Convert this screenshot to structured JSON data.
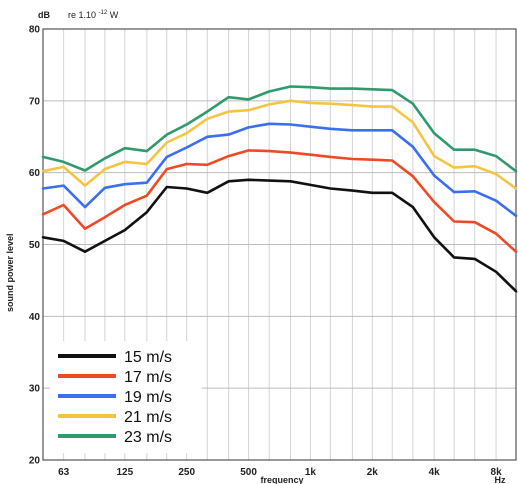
{
  "chart_data": {
    "type": "line",
    "ylabel": "sound power level",
    "xlabel": "frequency",
    "unit_db": "dB",
    "unit_ref": "re 1.10",
    "unit_ref_exp": "-12",
    "unit_ref_w": "W",
    "x_unit": "Hz",
    "ylim": [
      20,
      80
    ],
    "yticks": [
      20,
      30,
      40,
      50,
      60,
      70,
      80
    ],
    "xlim": [
      50,
      10000
    ],
    "xscale": "log",
    "xticks": [
      {
        "value": 63,
        "label": "63"
      },
      {
        "value": 125,
        "label": "125"
      },
      {
        "value": 250,
        "label": "250"
      },
      {
        "value": 500,
        "label": "500"
      },
      {
        "value": 1000,
        "label": "1k"
      },
      {
        "value": 2000,
        "label": "2k"
      },
      {
        "value": 4000,
        "label": "4k"
      },
      {
        "value": 8000,
        "label": "8k"
      }
    ],
    "grid": true,
    "legend_position": "bottom-left",
    "x": [
      50,
      63,
      80,
      100,
      125,
      160,
      200,
      250,
      315,
      400,
      500,
      630,
      800,
      1000,
      1250,
      1600,
      2000,
      2500,
      3150,
      4000,
      5000,
      6300,
      8000,
      10000
    ],
    "series": [
      {
        "name": "15 m/s",
        "color": "#111111",
        "values": [
          51,
          50.5,
          49,
          50.5,
          52,
          54.5,
          58,
          57.8,
          57.2,
          58.8,
          59,
          58.9,
          58.8,
          58.3,
          57.8,
          57.5,
          57.2,
          57.2,
          55.2,
          51,
          48.2,
          48,
          46.2,
          43.5
        ]
      },
      {
        "name": "17 m/s",
        "color": "#ee4a25",
        "values": [
          54.2,
          55.5,
          52.2,
          53.8,
          55.5,
          56.8,
          60.5,
          61.2,
          61.1,
          62.3,
          63.1,
          63,
          62.8,
          62.5,
          62.2,
          61.9,
          61.8,
          61.7,
          59.5,
          55.9,
          53.2,
          53.1,
          51.5,
          49
        ]
      },
      {
        "name": "19 m/s",
        "color": "#3a6ff0",
        "values": [
          57.8,
          58.2,
          55.2,
          57.9,
          58.4,
          58.6,
          62.2,
          63.5,
          65,
          65.3,
          66.3,
          66.8,
          66.7,
          66.4,
          66.1,
          65.9,
          65.9,
          65.9,
          63.6,
          59.6,
          57.3,
          57.4,
          56.1,
          54
        ]
      },
      {
        "name": "21 m/s",
        "color": "#f5c542",
        "values": [
          60.2,
          60.8,
          58.2,
          60.5,
          61.5,
          61.2,
          64.2,
          65.5,
          67.5,
          68.5,
          68.7,
          69.5,
          70,
          69.7,
          69.6,
          69.4,
          69.2,
          69.2,
          67,
          62.3,
          60.7,
          60.9,
          59.8,
          57.8
        ]
      },
      {
        "name": "23 m/s",
        "color": "#2f9a6c",
        "values": [
          62.2,
          61.5,
          60.3,
          62,
          63.4,
          63,
          65.3,
          66.7,
          68.5,
          70.5,
          70.2,
          71.3,
          72,
          71.9,
          71.7,
          71.7,
          71.6,
          71.5,
          69.6,
          65.5,
          63.2,
          63.2,
          62.3,
          60.2
        ]
      }
    ]
  }
}
